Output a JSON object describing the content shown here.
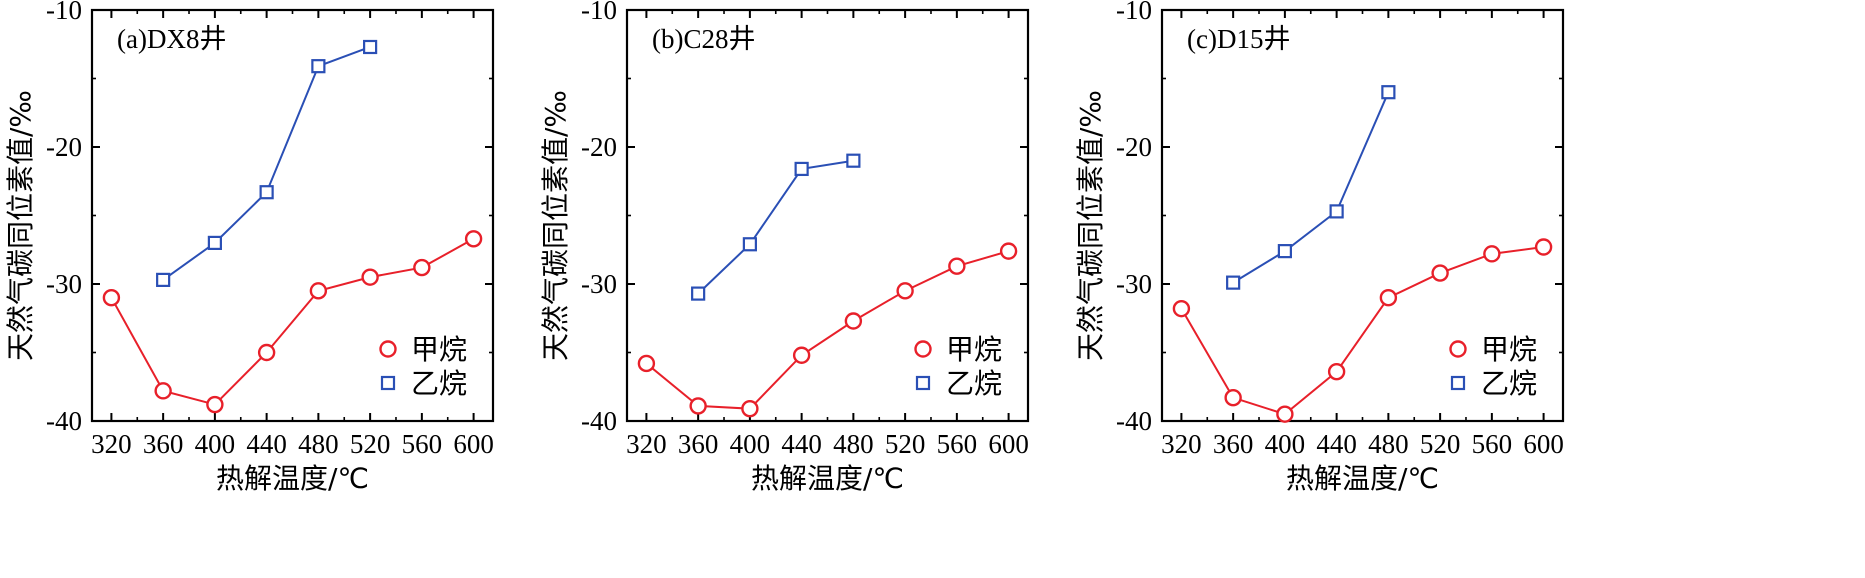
{
  "chart_data": [
    {
      "type": "line",
      "title": "(a)DX8井",
      "xlabel": "热解温度/℃",
      "ylabel": "天然气碳同位素值/‰",
      "xlim": [
        305,
        615
      ],
      "ylim": [
        -40,
        -10
      ],
      "xticks": [
        "320",
        "360",
        "400",
        "440",
        "480",
        "520",
        "560",
        "600"
      ],
      "yticks": [
        "-10",
        "-20",
        "-30",
        "-40"
      ],
      "legend_position": "bottom-right",
      "series": [
        {
          "name": "甲烷",
          "marker": "circle",
          "color": "#e8202a",
          "x": [
            320,
            360,
            400,
            440,
            480,
            520,
            560,
            600
          ],
          "y": [
            -31.0,
            -37.8,
            -38.8,
            -35.0,
            -30.5,
            -29.5,
            -28.8,
            -26.7
          ]
        },
        {
          "name": "乙烷",
          "marker": "square",
          "color": "#2a4fb5",
          "x": [
            360,
            400,
            440,
            480,
            520
          ],
          "y": [
            -29.7,
            -27.0,
            -23.3,
            -14.1,
            -12.7
          ]
        }
      ]
    },
    {
      "type": "line",
      "title": "(b)C28井",
      "xlabel": "热解温度/℃",
      "ylabel": "天然气碳同位素值/‰",
      "xlim": [
        305,
        615
      ],
      "ylim": [
        -40,
        -10
      ],
      "xticks": [
        "320",
        "360",
        "400",
        "440",
        "480",
        "520",
        "560",
        "600"
      ],
      "yticks": [
        "-10",
        "-20",
        "-30",
        "-40"
      ],
      "legend_position": "bottom-right",
      "series": [
        {
          "name": "甲烷",
          "marker": "circle",
          "color": "#e8202a",
          "x": [
            320,
            360,
            400,
            440,
            480,
            520,
            560,
            600
          ],
          "y": [
            -35.8,
            -38.9,
            -39.1,
            -35.2,
            -32.7,
            -30.5,
            -28.7,
            -27.6
          ]
        },
        {
          "name": "乙烷",
          "marker": "square",
          "color": "#2a4fb5",
          "x": [
            360,
            400,
            440,
            480
          ],
          "y": [
            -30.7,
            -27.1,
            -21.6,
            -21.0
          ]
        }
      ]
    },
    {
      "type": "line",
      "title": "(c)D15井",
      "xlabel": "热解温度/℃",
      "ylabel": "天然气碳同位素值/‰",
      "xlim": [
        305,
        615
      ],
      "ylim": [
        -40,
        -10
      ],
      "xticks": [
        "320",
        "360",
        "400",
        "440",
        "480",
        "520",
        "560",
        "600"
      ],
      "yticks": [
        "-10",
        "-20",
        "-30",
        "-40"
      ],
      "legend_position": "bottom-right",
      "series": [
        {
          "name": "甲烷",
          "marker": "circle",
          "color": "#e8202a",
          "x": [
            320,
            360,
            400,
            440,
            480,
            520,
            560,
            600
          ],
          "y": [
            -31.8,
            -38.3,
            -39.5,
            -36.4,
            -31.0,
            -29.2,
            -27.8,
            -27.3
          ]
        },
        {
          "name": "乙烷",
          "marker": "square",
          "color": "#2a4fb5",
          "x": [
            360,
            400,
            440,
            480
          ],
          "y": [
            -29.9,
            -27.6,
            -24.7,
            -16.0
          ]
        }
      ]
    }
  ]
}
